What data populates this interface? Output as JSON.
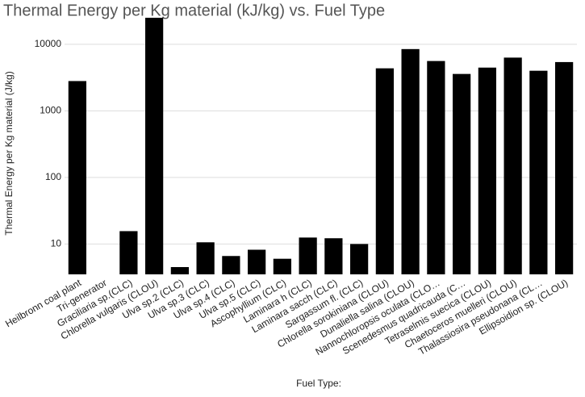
{
  "chart_data": {
    "type": "bar",
    "title": "Thermal Energy per Kg material (kJ/kg) vs. Fuel Type",
    "x_label": "Fuel Type:",
    "y_label": "Thermal Energy per Kg material (J/kg)",
    "categories": [
      "Heilbronn coal plant",
      "Tri-generator",
      "Graciliaria sp.(CLC)",
      "Chlorella vulgaris (CLOU)",
      "Ulva sp.2 (CLC)",
      "Ulva sp.3 (CLC)",
      "Ulva sp.4 (CLC)",
      "Ulva sp.5 (CLC)",
      "Ascophyllium (CLC)",
      "Laminara h (CLC)",
      "Laminara sacch (CLC)",
      "Sargassum fl. (CLC)",
      "Chlorella sorokiniana (CLOU)",
      "Dunaliella salina (CLOU)",
      "Nannochloropsis oculata (CLO…",
      "Scenedesmus quadricauda (C…",
      "Tetraselmis suecica (CLOU)",
      "Chaetoceros muelleri (CLOU)",
      "Thalassiosira pseudonana (CL…",
      "Ellipsoidion sp. (CLOU)"
    ],
    "values": [
      2800,
      null,
      15.6,
      25000,
      4.5,
      10.6,
      6.6,
      8.2,
      6.0,
      12.5,
      12.2,
      10,
      4350,
      8460,
      5600,
      3580,
      4460,
      6300,
      4000,
      5400
    ],
    "color": "#000000",
    "ylim": [
      3.5,
      25000
    ],
    "yticks": [
      10,
      100,
      1000,
      10000
    ],
    "log_scale": true,
    "grid": true
  }
}
